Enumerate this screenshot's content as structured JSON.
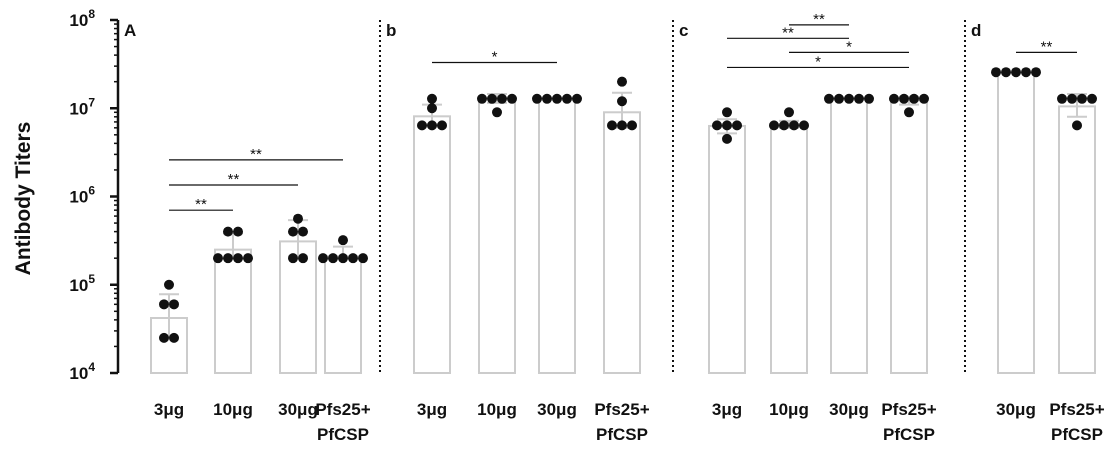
{
  "chart_data": {
    "type": "bar",
    "ylabel": "Antibody  Titers",
    "yscale": "log",
    "ylim": [
      10000,
      100000000
    ],
    "yticks": [
      {
        "value": 10000,
        "base": "10",
        "exp": "4"
      },
      {
        "value": 100000,
        "base": "10",
        "exp": "5"
      },
      {
        "value": 1000000,
        "base": "10",
        "exp": "6"
      },
      {
        "value": 10000000,
        "base": "10",
        "exp": "7"
      },
      {
        "value": 100000000,
        "base": "10",
        "exp": "8"
      }
    ],
    "colors": {
      "bar_edge": "#cccccc",
      "point": "#111111",
      "axis": "#111111"
    },
    "panels": [
      {
        "label": "A",
        "categories": [
          {
            "line1": "3μg",
            "line2": "",
            "mean": 42000,
            "err_hi": 78000,
            "err_lo": 25000,
            "points": [
              100000,
              60000,
              60000,
              25000,
              25000
            ]
          },
          {
            "line1": "10μg",
            "line2": "",
            "mean": 250000,
            "err_hi": 380000,
            "err_lo": 200000,
            "points": [
              400000,
              400000,
              200000,
              200000,
              200000,
              200000
            ]
          },
          {
            "line1": "30μg",
            "line2": "",
            "mean": 310000,
            "err_hi": 540000,
            "err_lo": 210000,
            "points": [
              560000,
              400000,
              400000,
              200000,
              200000
            ]
          },
          {
            "line1": "Pfs25+",
            "line2": "PfCSP",
            "mean": 210000,
            "err_hi": 270000,
            "err_lo": 200000,
            "points": [
              320000,
              200000,
              200000,
              200000,
              200000,
              200000
            ]
          }
        ],
        "significance": [
          {
            "from": 0,
            "to": 1,
            "y": 700000,
            "label": "**"
          },
          {
            "from": 0,
            "to": 2,
            "y": 1350000,
            "label": "**"
          },
          {
            "from": 0,
            "to": 3,
            "y": 2600000,
            "label": "**"
          }
        ]
      },
      {
        "label": "b",
        "categories": [
          {
            "line1": "3μg",
            "line2": "",
            "mean": 8100000,
            "err_hi": 11000000,
            "err_lo": 6500000,
            "points": [
              12800000,
              10000000,
              6400000,
              6400000,
              6400000
            ]
          },
          {
            "line1": "10μg",
            "line2": "",
            "mean": 12800000,
            "err_hi": 14500000,
            "err_lo": 11500000,
            "points": [
              12800000,
              12800000,
              12800000,
              12800000,
              9000000
            ]
          },
          {
            "line1": "30μg",
            "line2": "",
            "mean": 12800000,
            "err_hi": 12800000,
            "err_lo": 12800000,
            "points": [
              12800000,
              12800000,
              12800000,
              12800000,
              12800000
            ]
          },
          {
            "line1": "Pfs25+",
            "line2": "PfCSP",
            "mean": 9000000,
            "err_hi": 15000000,
            "err_lo": 6000000,
            "points": [
              20000000,
              12000000,
              6400000,
              6400000,
              6400000
            ]
          }
        ],
        "significance": [
          {
            "from": 0,
            "to": 2,
            "y": 33000000,
            "label": "*"
          }
        ]
      },
      {
        "label": "c",
        "categories": [
          {
            "line1": "3μg",
            "line2": "",
            "mean": 6300000,
            "err_hi": 7500000,
            "err_lo": 5200000,
            "points": [
              9000000,
              6400000,
              6400000,
              6400000,
              4500000
            ]
          },
          {
            "line1": "10μg",
            "line2": "",
            "mean": 6500000,
            "err_hi": 7200000,
            "err_lo": 6000000,
            "points": [
              9000000,
              6400000,
              6400000,
              6400000,
              6400000
            ]
          },
          {
            "line1": "30μg",
            "line2": "",
            "mean": 12800000,
            "err_hi": 12800000,
            "err_lo": 12800000,
            "points": [
              12800000,
              12800000,
              12800000,
              12800000,
              12800000
            ]
          },
          {
            "line1": "Pfs25+",
            "line2": "PfCSP",
            "mean": 12200000,
            "err_hi": 13500000,
            "err_lo": 11000000,
            "points": [
              12800000,
              12800000,
              12800000,
              12800000,
              9000000
            ]
          }
        ],
        "significance": [
          {
            "from": 1,
            "to": 2,
            "y": 88000000,
            "label": "**"
          },
          {
            "from": 0,
            "to": 2,
            "y": 62000000,
            "label": "**"
          },
          {
            "from": 1,
            "to": 3,
            "y": 43000000,
            "label": "*"
          },
          {
            "from": 0,
            "to": 3,
            "y": 29000000,
            "label": "*"
          }
        ]
      },
      {
        "label": "d",
        "categories": [
          {
            "line1": "30μg",
            "line2": "",
            "mean": 25600000,
            "err_hi": 25600000,
            "err_lo": 25600000,
            "points": [
              25600000,
              25600000,
              25600000,
              25600000,
              25600000
            ]
          },
          {
            "line1": "Pfs25+",
            "line2": "PfCSP",
            "mean": 10500000,
            "err_hi": 14500000,
            "err_lo": 8000000,
            "points": [
              12800000,
              12800000,
              12800000,
              12800000,
              6400000
            ]
          }
        ],
        "significance": [
          {
            "from": 0,
            "to": 1,
            "y": 43000000,
            "label": "**"
          }
        ]
      }
    ]
  }
}
